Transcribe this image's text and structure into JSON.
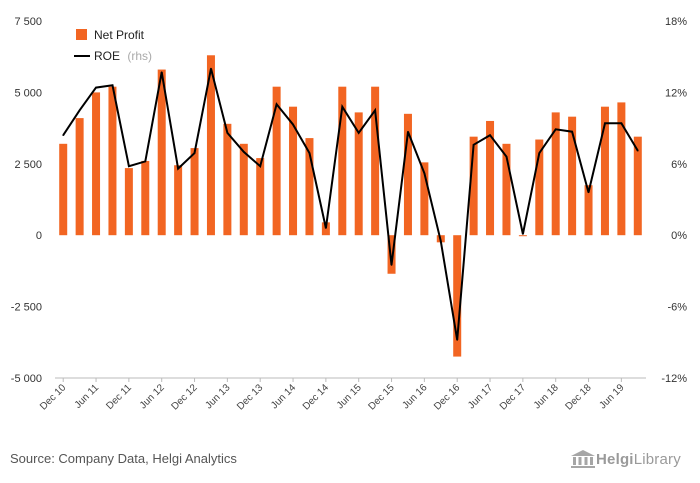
{
  "chart_data": {
    "type": "bar",
    "categories": [
      "Dec 10",
      "Mar 11",
      "Jun 11",
      "Sep 11",
      "Dec 11",
      "Mar 12",
      "Jun 12",
      "Sep 12",
      "Dec 12",
      "Mar 13",
      "Jun 13",
      "Sep 13",
      "Dec 13",
      "Mar 14",
      "Jun 14",
      "Sep 14",
      "Dec 14",
      "Mar 15",
      "Jun 15",
      "Sep 15",
      "Dec 15",
      "Mar 16",
      "Jun 16",
      "Sep 16",
      "Dec 16",
      "Mar 17",
      "Jun 17",
      "Sep 17",
      "Dec 17",
      "Mar 18",
      "Jun 18",
      "Sep 18",
      "Dec 18",
      "Mar 19",
      "Jun 19",
      "Sep 19"
    ],
    "x_tick_labels": [
      "Dec 10",
      "Jun 11",
      "Dec 11",
      "Jun 12",
      "Dec 12",
      "Jun 13",
      "Dec 13",
      "Jun 14",
      "Dec 14",
      "Jun 15",
      "Dec 15",
      "Jun 16",
      "Dec 16",
      "Jun 17",
      "Dec 17",
      "Jun 18",
      "Dec 18",
      "Jun 19"
    ],
    "series": [
      {
        "name": "Net Profit",
        "type": "bar",
        "axis": "left",
        "color": "#f26522",
        "values": [
          3200,
          4100,
          5000,
          5200,
          2350,
          2600,
          5800,
          2450,
          3050,
          6300,
          3900,
          3200,
          2700,
          5200,
          4500,
          3400,
          450,
          5200,
          4300,
          5200,
          -1350,
          4250,
          2550,
          -250,
          -4250,
          3450,
          4000,
          3200,
          0,
          3350,
          4300,
          4150,
          1750,
          4500,
          4650,
          3450
        ]
      },
      {
        "name": "ROE",
        "name_suffix": "(rhs)",
        "type": "line",
        "axis": "right",
        "color": "#000000",
        "values": [
          8.4,
          10.5,
          12.4,
          12.6,
          5.8,
          6.2,
          13.7,
          5.6,
          6.9,
          14.0,
          8.6,
          7.0,
          5.8,
          11.0,
          9.3,
          6.9,
          0.6,
          10.8,
          8.6,
          10.5,
          -2.5,
          8.7,
          5.2,
          -0.5,
          -8.8,
          7.6,
          8.4,
          6.6,
          0.1,
          6.9,
          8.9,
          8.7,
          3.6,
          9.4,
          9.4,
          7.1
        ]
      }
    ],
    "y_left": {
      "min": -5000,
      "max": 7500,
      "ticks": [
        7500,
        5000,
        2500,
        0,
        -2500,
        -5000
      ],
      "tick_labels": [
        "7 500",
        "5 000",
        "2 500",
        "0",
        "-2 500",
        "-5 000"
      ]
    },
    "y_right": {
      "min": -12,
      "max": 18,
      "ticks": [
        18,
        12,
        6,
        0,
        -6,
        -12
      ],
      "tick_labels": [
        "18%",
        "12%",
        "6%",
        "0%",
        "-6%",
        "-12%"
      ]
    },
    "grid": false,
    "legend_position": "top-left"
  },
  "footer": {
    "source": "Source: Company Data, Helgi Analytics",
    "brand_first": "Helgi",
    "brand_second": "Library",
    "brand_icon": "bank-building-icon"
  }
}
